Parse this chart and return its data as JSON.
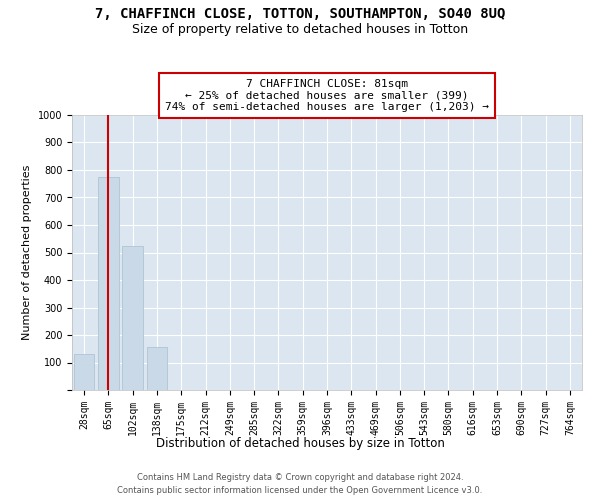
{
  "title": "7, CHAFFINCH CLOSE, TOTTON, SOUTHAMPTON, SO40 8UQ",
  "subtitle": "Size of property relative to detached houses in Totton",
  "xlabel": "Distribution of detached houses by size in Totton",
  "ylabel": "Number of detached properties",
  "categories": [
    "28sqm",
    "65sqm",
    "102sqm",
    "138sqm",
    "175sqm",
    "212sqm",
    "249sqm",
    "285sqm",
    "322sqm",
    "359sqm",
    "396sqm",
    "433sqm",
    "469sqm",
    "506sqm",
    "543sqm",
    "580sqm",
    "616sqm",
    "653sqm",
    "690sqm",
    "727sqm",
    "764sqm"
  ],
  "values": [
    130,
    775,
    525,
    158,
    0,
    0,
    0,
    0,
    0,
    0,
    0,
    0,
    0,
    0,
    0,
    0,
    0,
    0,
    0,
    0,
    0
  ],
  "bar_color": "#c9d9e8",
  "bar_edge_color": "#a8bece",
  "vline_x": 1.0,
  "vline_color": "#cc0000",
  "annotation_line1": "7 CHAFFINCH CLOSE: 81sqm",
  "annotation_line2": "← 25% of detached houses are smaller (399)",
  "annotation_line3": "74% of semi-detached houses are larger (1,203) →",
  "annotation_box_color": "#cc0000",
  "annotation_box_facecolor": "white",
  "ylim": [
    0,
    1000
  ],
  "yticks": [
    0,
    100,
    200,
    300,
    400,
    500,
    600,
    700,
    800,
    900,
    1000
  ],
  "background_color": "#dce6f0",
  "footer_line1": "Contains HM Land Registry data © Crown copyright and database right 2024.",
  "footer_line2": "Contains public sector information licensed under the Open Government Licence v3.0.",
  "title_fontsize": 10,
  "subtitle_fontsize": 9,
  "tick_fontsize": 7,
  "ylabel_fontsize": 8,
  "xlabel_fontsize": 8.5,
  "annot_fontsize": 8
}
